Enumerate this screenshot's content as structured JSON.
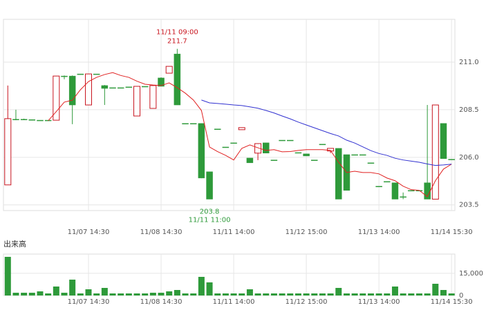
{
  "chart_data": [
    {
      "type": "candlestick",
      "categories": [
        null,
        null,
        null,
        null,
        null,
        null,
        null,
        null,
        null,
        null,
        "11/07 14:30",
        null,
        null,
        null,
        null,
        null,
        null,
        null,
        null,
        "11/08 14:30",
        null,
        null,
        null,
        null,
        null,
        null,
        null,
        null,
        "11/11 14:00",
        null,
        null,
        null,
        null,
        null,
        null,
        null,
        null,
        "11/12 15:00",
        null,
        null,
        null,
        null,
        null,
        null,
        null,
        null,
        "11/13 14:00",
        null,
        null,
        null,
        null,
        null,
        null,
        null,
        null,
        "11/14 15:30"
      ],
      "open": [
        204.55,
        208.0,
        208.0,
        207.98,
        207.95,
        207.95,
        207.95,
        210.27,
        210.27,
        210.38,
        208.75,
        210.38,
        209.77,
        209.66,
        209.66,
        209.7,
        208.17,
        209.73,
        208.57,
        210.17,
        210.42,
        211.43,
        207.78,
        207.78,
        207.78,
        205.24,
        207.49,
        206.54,
        206.76,
        207.45,
        205.96,
        206.22,
        206.76,
        205.86,
        206.9,
        206.9,
        206.25,
        206.18,
        205.86,
        206.69,
        206.33,
        206.47,
        206.14,
        206.14,
        206.14,
        205.71,
        204.48,
        204.73,
        204.66,
        203.93,
        204.26,
        204.26,
        204.66,
        203.8,
        207.78,
        205.9
      ],
      "high": [
        209.77,
        208.5,
        208.03,
        207.98,
        207.95,
        207.95,
        210.27,
        210.3,
        210.3,
        210.38,
        210.38,
        210.38,
        209.8,
        209.66,
        209.66,
        209.7,
        209.73,
        209.73,
        209.77,
        210.2,
        210.78,
        211.7,
        207.78,
        207.78,
        207.78,
        205.24,
        207.49,
        206.54,
        206.76,
        207.56,
        205.96,
        206.72,
        206.76,
        205.86,
        206.9,
        206.9,
        206.25,
        206.18,
        205.86,
        206.69,
        206.47,
        206.47,
        206.14,
        206.14,
        206.14,
        205.71,
        204.48,
        204.73,
        204.66,
        204.15,
        204.26,
        204.26,
        208.75,
        208.75,
        207.78,
        205.9
      ],
      "low": [
        204.55,
        207.95,
        207.97,
        207.98,
        207.95,
        207.95,
        207.95,
        210.1,
        207.74,
        210.38,
        208.75,
        210.38,
        208.75,
        209.66,
        209.66,
        209.7,
        208.17,
        209.73,
        208.57,
        209.73,
        210.42,
        208.75,
        207.78,
        207.78,
        204.9,
        203.8,
        207.49,
        206.54,
        206.76,
        207.45,
        205.71,
        205.85,
        206.22,
        205.86,
        206.9,
        206.9,
        206.25,
        206.07,
        205.86,
        206.69,
        206.22,
        203.8,
        204.26,
        206.14,
        206.14,
        205.71,
        204.48,
        204.73,
        203.8,
        203.8,
        204.26,
        204.26,
        203.8,
        203.8,
        205.93,
        205.9
      ],
      "close": [
        208.03,
        208.0,
        208.0,
        207.98,
        207.95,
        207.95,
        210.27,
        210.27,
        208.75,
        210.38,
        210.38,
        210.38,
        209.62,
        209.66,
        209.66,
        209.7,
        209.73,
        209.73,
        209.77,
        209.73,
        210.78,
        208.75,
        207.78,
        207.78,
        204.91,
        203.8,
        207.49,
        206.54,
        206.76,
        207.56,
        205.71,
        206.72,
        206.22,
        205.86,
        206.9,
        206.9,
        206.25,
        206.07,
        205.86,
        206.69,
        206.47,
        203.8,
        204.26,
        206.14,
        206.14,
        205.71,
        204.48,
        204.73,
        203.8,
        203.93,
        204.26,
        204.26,
        203.8,
        208.75,
        205.93,
        205.9
      ],
      "up_color": "#c8141e",
      "down_color": "#2e9a3a",
      "series": [
        {
          "color": "#e02020",
          "values": [
            null,
            null,
            null,
            null,
            null,
            207.92,
            208.4,
            208.9,
            209.0,
            209.55,
            209.98,
            210.2,
            210.35,
            210.45,
            210.3,
            210.2,
            210.0,
            209.84,
            209.8,
            209.77,
            209.91,
            209.66,
            209.37,
            209.01,
            208.46,
            206.54,
            206.3,
            206.1,
            205.86,
            206.47,
            206.65,
            206.5,
            206.36,
            206.4,
            206.29,
            206.3,
            206.36,
            206.4,
            206.4,
            206.4,
            206.36,
            205.74,
            205.2,
            205.27,
            205.2,
            205.2,
            205.13,
            204.91,
            204.77,
            204.48,
            204.3,
            204.26,
            203.93,
            204.77,
            205.38,
            205.64
          ]
        },
        {
          "color": "#3030d0",
          "values": [
            null,
            null,
            null,
            null,
            null,
            null,
            null,
            null,
            null,
            null,
            null,
            null,
            null,
            null,
            null,
            null,
            null,
            null,
            null,
            null,
            null,
            null,
            null,
            null,
            209.01,
            208.86,
            208.83,
            208.79,
            208.75,
            208.72,
            208.65,
            208.58,
            208.46,
            208.33,
            208.17,
            208.02,
            207.85,
            207.7,
            207.55,
            207.4,
            207.25,
            207.12,
            206.9,
            206.75,
            206.55,
            206.35,
            206.2,
            206.1,
            205.95,
            205.86,
            205.8,
            205.74,
            205.65,
            205.57,
            205.6,
            205.64
          ]
        }
      ],
      "max_annotation": {
        "time": "11/11 09:00",
        "value": 211.7
      },
      "min_annotation": {
        "time": "11/11 11:00",
        "value": 203.8
      },
      "ylim": [
        203.2,
        213.25
      ],
      "yticks": [
        {
          "value": 211,
          "label": "211.0"
        },
        208.5,
        {
          "value": 206,
          "label": "206.0"
        },
        203.5
      ],
      "grid": true
    },
    {
      "type": "bar",
      "title": "出来高",
      "categories": [
        null,
        null,
        null,
        null,
        null,
        null,
        null,
        null,
        null,
        null,
        "11/07 14:30",
        null,
        null,
        null,
        null,
        null,
        null,
        null,
        null,
        "11/08 14:30",
        null,
        null,
        null,
        null,
        null,
        null,
        null,
        null,
        "11/11 14:00",
        null,
        null,
        null,
        null,
        null,
        null,
        null,
        null,
        "11/12 15:00",
        null,
        null,
        null,
        null,
        null,
        null,
        null,
        null,
        "11/13 14:00",
        null,
        null,
        null,
        null,
        null,
        null,
        null,
        null,
        "11/14 15:30"
      ],
      "values": [
        26130,
        1870,
        1870,
        1870,
        2800,
        1400,
        6070,
        1870,
        10730,
        1400,
        4200,
        1400,
        5130,
        1400,
        1400,
        1400,
        1400,
        1400,
        1870,
        1870,
        2800,
        3730,
        1400,
        1400,
        12600,
        8870,
        1400,
        1400,
        1400,
        1400,
        4200,
        1400,
        1400,
        1400,
        1400,
        1400,
        1400,
        1400,
        1400,
        1400,
        1400,
        5130,
        1400,
        1400,
        1400,
        1400,
        1400,
        1400,
        6070,
        1400,
        1400,
        1400,
        1400,
        7930,
        3730,
        1400
      ],
      "color": "#2e9a3a",
      "ylim": [
        0,
        28000
      ],
      "yticks": [
        {
          "value": 15000,
          "label": "15,000"
        },
        0
      ],
      "grid": true
    }
  ]
}
